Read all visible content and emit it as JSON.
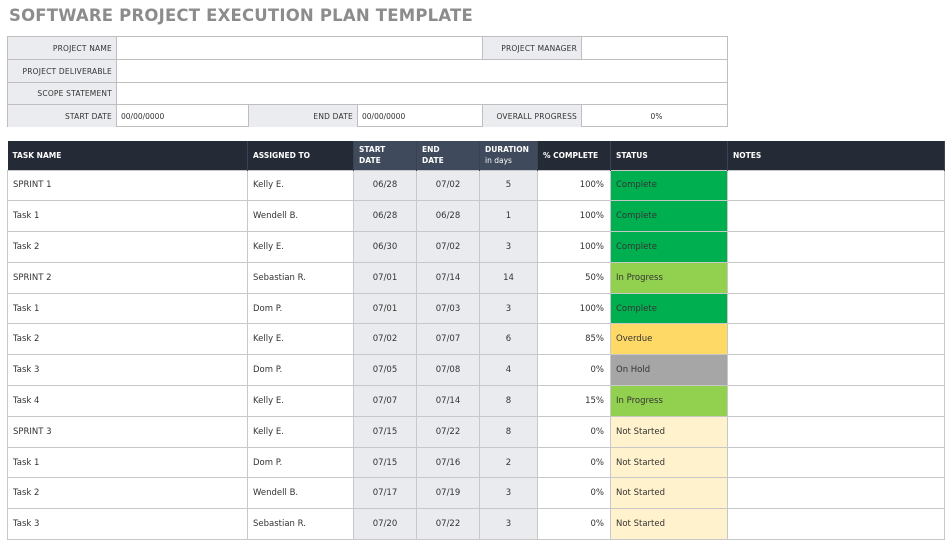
{
  "title": "SOFTWARE PROJECT EXECUTION PLAN TEMPLATE",
  "info": {
    "project_name_label": "PROJECT NAME",
    "project_name_value": "",
    "project_manager_label": "PROJECT MANAGER",
    "project_manager_value": "",
    "deliverable_label": "PROJECT DELIVERABLE",
    "deliverable_value": "",
    "scope_label": "SCOPE STATEMENT",
    "scope_value": "",
    "start_date_label": "START DATE",
    "start_date_value": "00/00/0000",
    "end_date_label": "END DATE",
    "end_date_value": "00/00/0000",
    "overall_progress_label": "OVERALL PROGRESS",
    "overall_progress_value": "0%"
  },
  "headers": {
    "task_name": "TASK NAME",
    "assigned_to": "ASSIGNED TO",
    "start_date_l1": "START",
    "start_date_l2": "DATE",
    "end_date_l1": "END",
    "end_date_l2": "DATE",
    "duration_l1": "DURATION",
    "duration_l2": "in days",
    "pct_complete": "% COMPLETE",
    "status": "STATUS",
    "notes": "NOTES"
  },
  "status_colors": {
    "Complete": "#00b050",
    "In Progress": "#92d050",
    "Overdue": "#ffd966",
    "On Hold": "#a6a6a6",
    "Not Started": "#fff2cc"
  },
  "rows": [
    {
      "task": "SPRINT 1",
      "assigned": "Kelly E.",
      "start": "06/28",
      "end": "07/02",
      "duration": "5",
      "pct": "100%",
      "status": "Complete",
      "notes": ""
    },
    {
      "task": "Task 1",
      "assigned": "Wendell B.",
      "start": "06/28",
      "end": "06/28",
      "duration": "1",
      "pct": "100%",
      "status": "Complete",
      "notes": ""
    },
    {
      "task": "Task 2",
      "assigned": "Kelly E.",
      "start": "06/30",
      "end": "07/02",
      "duration": "3",
      "pct": "100%",
      "status": "Complete",
      "notes": ""
    },
    {
      "task": "SPRINT 2",
      "assigned": "Sebastian R.",
      "start": "07/01",
      "end": "07/14",
      "duration": "14",
      "pct": "50%",
      "status": "In Progress",
      "notes": ""
    },
    {
      "task": "Task 1",
      "assigned": "Dom P.",
      "start": "07/01",
      "end": "07/03",
      "duration": "3",
      "pct": "100%",
      "status": "Complete",
      "notes": ""
    },
    {
      "task": "Task 2",
      "assigned": "Kelly E.",
      "start": "07/02",
      "end": "07/07",
      "duration": "6",
      "pct": "85%",
      "status": "Overdue",
      "notes": ""
    },
    {
      "task": "Task 3",
      "assigned": "Dom P.",
      "start": "07/05",
      "end": "07/08",
      "duration": "4",
      "pct": "0%",
      "status": "On Hold",
      "notes": ""
    },
    {
      "task": "Task 4",
      "assigned": "Kelly E.",
      "start": "07/07",
      "end": "07/14",
      "duration": "8",
      "pct": "15%",
      "status": "In Progress",
      "notes": ""
    },
    {
      "task": "SPRINT 3",
      "assigned": "Kelly E.",
      "start": "07/15",
      "end": "07/22",
      "duration": "8",
      "pct": "0%",
      "status": "Not Started",
      "notes": ""
    },
    {
      "task": "Task 1",
      "assigned": "Dom P.",
      "start": "07/15",
      "end": "07/16",
      "duration": "2",
      "pct": "0%",
      "status": "Not Started",
      "notes": ""
    },
    {
      "task": "Task 2",
      "assigned": "Wendell B.",
      "start": "07/17",
      "end": "07/19",
      "duration": "3",
      "pct": "0%",
      "status": "Not Started",
      "notes": ""
    },
    {
      "task": "Task 3",
      "assigned": "Sebastian R.",
      "start": "07/20",
      "end": "07/22",
      "duration": "3",
      "pct": "0%",
      "status": "Not Started",
      "notes": ""
    }
  ]
}
